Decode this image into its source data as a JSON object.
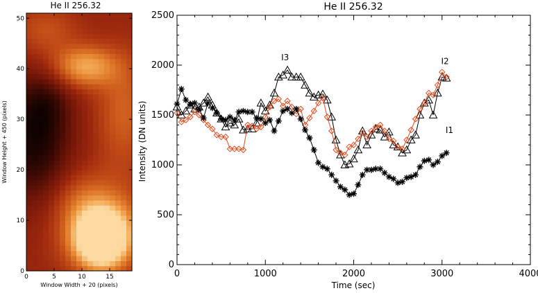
{
  "chart_data": [
    {
      "type": "heatmap",
      "title": "He II 256.32",
      "xlabel": "Window Width + 20 (pixels)",
      "ylabel": "Window Height + 450 (pixels)",
      "xlim": [
        0,
        19
      ],
      "ylim": [
        0,
        51
      ],
      "xticks": [
        "0",
        "5",
        "10",
        "15"
      ],
      "yticks": [
        "0",
        "10",
        "20",
        "30",
        "40",
        "50"
      ],
      "colormap": [
        "#0e0200",
        "#3a0903",
        "#6e1508",
        "#98250d",
        "#c04a16",
        "#e07a2a",
        "#f3aa55",
        "#fbd9a0"
      ],
      "blobs": [
        {
          "x": 13.5,
          "y": 6.5,
          "sx": 3.0,
          "sy": 3.6,
          "amp": 1.0
        },
        {
          "x": 13.5,
          "y": 8.5,
          "sx": 5.5,
          "sy": 6.0,
          "amp": 0.35
        },
        {
          "x": 10.5,
          "y": 40.5,
          "sx": 4.0,
          "sy": 2.8,
          "amp": 0.42
        },
        {
          "x": 3.5,
          "y": 47.5,
          "sx": 4.0,
          "sy": 3.5,
          "amp": 0.18
        },
        {
          "x": 17.5,
          "y": 31.5,
          "sx": 3.5,
          "sy": 8.0,
          "amp": 0.22
        },
        {
          "x": 9.5,
          "y": 14.5,
          "sx": 4.0,
          "sy": 4.0,
          "amp": 0.12
        }
      ],
      "base": 0.42,
      "dark_centers": [
        {
          "x": 1.5,
          "y": 25.5,
          "sx": 4.5,
          "sy": 8.5,
          "amp": 0.38
        },
        {
          "x": 3.5,
          "y": 33.0,
          "sx": 3.0,
          "sy": 4.0,
          "amp": 0.15
        }
      ]
    },
    {
      "type": "line",
      "title": "He II 256.32",
      "xlabel": "Time (sec)",
      "ylabel": "Intensity (DN units)",
      "xlim": [
        0,
        4000
      ],
      "ylim": [
        0,
        2500
      ],
      "xticks": [
        "0",
        "1000",
        "2000",
        "3000",
        "4000"
      ],
      "yticks": [
        "0",
        "500",
        "1000",
        "1500",
        "2000",
        "2500"
      ],
      "series": [
        {
          "name": "I1",
          "color": "#000000",
          "marker": "asterisk",
          "label_at": [
            3040,
            1320
          ],
          "points": [
            [
              0,
              1610
            ],
            [
              50,
              1760
            ],
            [
              100,
              1650
            ],
            [
              150,
              1610
            ],
            [
              200,
              1620
            ],
            [
              250,
              1560
            ],
            [
              300,
              1470
            ],
            [
              350,
              1620
            ],
            [
              400,
              1570
            ],
            [
              450,
              1520
            ],
            [
              500,
              1460
            ],
            [
              550,
              1450
            ],
            [
              600,
              1480
            ],
            [
              650,
              1450
            ],
            [
              700,
              1530
            ],
            [
              750,
              1540
            ],
            [
              800,
              1530
            ],
            [
              850,
              1530
            ],
            [
              900,
              1470
            ],
            [
              950,
              1460
            ],
            [
              1000,
              1420
            ],
            [
              1050,
              1450
            ],
            [
              1100,
              1340
            ],
            [
              1150,
              1440
            ],
            [
              1200,
              1540
            ],
            [
              1250,
              1560
            ],
            [
              1300,
              1520
            ],
            [
              1350,
              1560
            ],
            [
              1400,
              1460
            ],
            [
              1450,
              1350
            ],
            [
              1500,
              1270
            ],
            [
              1550,
              1150
            ],
            [
              1600,
              1020
            ],
            [
              1650,
              980
            ],
            [
              1700,
              960
            ],
            [
              1750,
              900
            ],
            [
              1800,
              840
            ],
            [
              1850,
              780
            ],
            [
              1900,
              750
            ],
            [
              1950,
              700
            ],
            [
              2000,
              710
            ],
            [
              2050,
              800
            ],
            [
              2100,
              900
            ],
            [
              2150,
              950
            ],
            [
              2200,
              950
            ],
            [
              2250,
              960
            ],
            [
              2300,
              960
            ],
            [
              2350,
              920
            ],
            [
              2400,
              880
            ],
            [
              2450,
              860
            ],
            [
              2500,
              820
            ],
            [
              2550,
              830
            ],
            [
              2600,
              870
            ],
            [
              2650,
              880
            ],
            [
              2700,
              900
            ],
            [
              2750,
              980
            ],
            [
              2800,
              1040
            ],
            [
              2850,
              1050
            ],
            [
              2900,
              1000
            ],
            [
              2950,
              1030
            ],
            [
              3000,
              1090
            ],
            [
              3050,
              1120
            ]
          ]
        },
        {
          "name": "I2",
          "color": "#e04a1c",
          "marker": "diamond",
          "label_at": [
            2990,
            2010
          ],
          "points": [
            [
              0,
              1520
            ],
            [
              50,
              1430
            ],
            [
              100,
              1450
            ],
            [
              150,
              1480
            ],
            [
              200,
              1530
            ],
            [
              250,
              1500
            ],
            [
              300,
              1450
            ],
            [
              350,
              1400
            ],
            [
              400,
              1360
            ],
            [
              450,
              1300
            ],
            [
              500,
              1280
            ],
            [
              550,
              1280
            ],
            [
              600,
              1160
            ],
            [
              650,
              1160
            ],
            [
              700,
              1160
            ],
            [
              750,
              1150
            ],
            [
              800,
              1400
            ],
            [
              850,
              1390
            ],
            [
              900,
              1360
            ],
            [
              950,
              1380
            ],
            [
              1000,
              1480
            ],
            [
              1050,
              1580
            ],
            [
              1100,
              1640
            ],
            [
              1150,
              1660
            ],
            [
              1200,
              1590
            ],
            [
              1250,
              1640
            ],
            [
              1300,
              1580
            ],
            [
              1350,
              1510
            ],
            [
              1400,
              1560
            ],
            [
              1450,
              1400
            ],
            [
              1500,
              1470
            ],
            [
              1550,
              1540
            ],
            [
              1600,
              1620
            ],
            [
              1650,
              1670
            ],
            [
              1700,
              1480
            ],
            [
              1750,
              1340
            ],
            [
              1800,
              1150
            ],
            [
              1850,
              1120
            ],
            [
              1900,
              1100
            ],
            [
              1950,
              1180
            ],
            [
              2000,
              1200
            ],
            [
              2050,
              1260
            ],
            [
              2100,
              1320
            ],
            [
              2150,
              1280
            ],
            [
              2200,
              1340
            ],
            [
              2250,
              1380
            ],
            [
              2300,
              1400
            ],
            [
              2350,
              1340
            ],
            [
              2400,
              1260
            ],
            [
              2450,
              1240
            ],
            [
              2500,
              1180
            ],
            [
              2550,
              1160
            ],
            [
              2600,
              1250
            ],
            [
              2650,
              1350
            ],
            [
              2700,
              1460
            ],
            [
              2750,
              1560
            ],
            [
              2800,
              1620
            ],
            [
              2850,
              1720
            ],
            [
              2900,
              1700
            ],
            [
              2950,
              1800
            ],
            [
              3000,
              1930
            ],
            [
              3050,
              1880
            ]
          ]
        },
        {
          "name": "I3",
          "color": "#000000",
          "marker": "triangle",
          "label_at": [
            1180,
            2050
          ],
          "points": [
            [
              0,
              1580
            ],
            [
              50,
              1500
            ],
            [
              100,
              1540
            ],
            [
              150,
              1600
            ],
            [
              200,
              1560
            ],
            [
              250,
              1580
            ],
            [
              300,
              1620
            ],
            [
              350,
              1680
            ],
            [
              400,
              1600
            ],
            [
              450,
              1520
            ],
            [
              500,
              1460
            ],
            [
              550,
              1380
            ],
            [
              600,
              1420
            ],
            [
              650,
              1400
            ],
            [
              700,
              1460
            ],
            [
              750,
              1350
            ],
            [
              800,
              1360
            ],
            [
              850,
              1360
            ],
            [
              900,
              1420
            ],
            [
              950,
              1620
            ],
            [
              1000,
              1540
            ],
            [
              1050,
              1600
            ],
            [
              1100,
              1720
            ],
            [
              1150,
              1880
            ],
            [
              1200,
              1900
            ],
            [
              1250,
              1950
            ],
            [
              1300,
              1880
            ],
            [
              1350,
              1880
            ],
            [
              1400,
              1880
            ],
            [
              1450,
              1800
            ],
            [
              1500,
              1720
            ],
            [
              1550,
              1680
            ],
            [
              1600,
              1700
            ],
            [
              1650,
              1710
            ],
            [
              1700,
              1650
            ],
            [
              1750,
              1480
            ],
            [
              1800,
              1250
            ],
            [
              1850,
              1100
            ],
            [
              1900,
              1000
            ],
            [
              1950,
              1010
            ],
            [
              2000,
              1060
            ],
            [
              2050,
              1150
            ],
            [
              2100,
              1340
            ],
            [
              2150,
              1200
            ],
            [
              2200,
              1300
            ],
            [
              2250,
              1360
            ],
            [
              2300,
              1350
            ],
            [
              2350,
              1280
            ],
            [
              2400,
              1330
            ],
            [
              2450,
              1200
            ],
            [
              2500,
              1180
            ],
            [
              2550,
              1120
            ],
            [
              2600,
              1150
            ],
            [
              2650,
              1250
            ],
            [
              2700,
              1300
            ],
            [
              2750,
              1500
            ],
            [
              2800,
              1620
            ],
            [
              2850,
              1650
            ],
            [
              2900,
              1500
            ],
            [
              2950,
              1720
            ],
            [
              3000,
              1880
            ],
            [
              3050,
              1870
            ]
          ]
        }
      ]
    }
  ]
}
